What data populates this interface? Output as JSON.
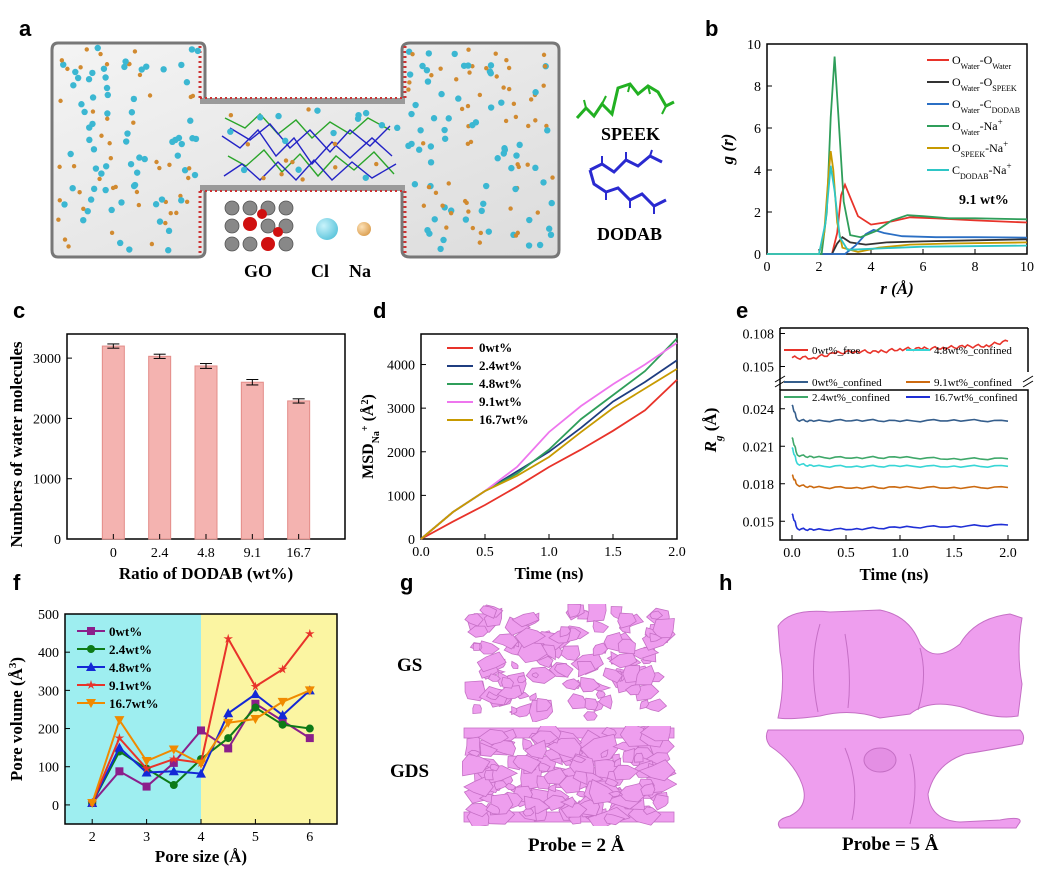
{
  "panels": {
    "a": {
      "letter": "a",
      "labels": {
        "speek": "SPEEK",
        "dodab": "DODAB",
        "go": "GO",
        "cl": "Cl",
        "na": "Na"
      }
    },
    "b": {
      "letter": "b",
      "annotation": "9.1 wt%",
      "xlabel": "r (Å)",
      "ylabel": "g (r)",
      "xticks": [
        "0",
        "2",
        "4",
        "6",
        "8",
        "10"
      ],
      "yticks": [
        "0",
        "2",
        "4",
        "6",
        "8",
        "10"
      ],
      "legend": [
        {
          "name": "OWater-OWater",
          "main": "O",
          "sub1": "Water",
          "mid": "-O",
          "sub2": "Water",
          "color": "#e8332a"
        },
        {
          "name": "OWater-OSPEEK",
          "main": "O",
          "sub1": "Water",
          "mid": "-O",
          "sub2": "SPEEK",
          "color": "#333333"
        },
        {
          "name": "OWater-CDODAB",
          "main": "O",
          "sub1": "Water",
          "mid": "-C",
          "sub2": "DODAB",
          "color": "#2b6fc4"
        },
        {
          "name": "OWater-Na+",
          "main": "O",
          "sub1": "Water",
          "mid": "-Na",
          "sup": "+",
          "color": "#2f9e5a"
        },
        {
          "name": "OSPEEK-Na+",
          "main": "O",
          "sub1": "SPEEK",
          "mid": "-Na",
          "sup": "+",
          "color": "#c79a00"
        },
        {
          "name": "CDODAB-Na+",
          "main": "C",
          "sub1": "DODAB",
          "mid": "-Na",
          "sup": "+",
          "color": "#2ec6c6"
        }
      ]
    },
    "c": {
      "letter": "c",
      "xlabel": "Ratio of DODAB (wt%)",
      "ylabel": "Numbers of water molecules",
      "yticks": [
        "0",
        "1000",
        "2000",
        "3000"
      ]
    },
    "d": {
      "letter": "d",
      "xlabel": "Time (ns)",
      "ylabel": "MSDNa+ (Å2)",
      "ylabel_main": "MSD",
      "ylabel_sub": "Na",
      "ylabel_sup": "+",
      "ylabel_unit": " (Å",
      "ylabel_unit_sup": "2",
      "ylabel_close": ")",
      "xticks": [
        "0.0",
        "0.5",
        "1.0",
        "1.5",
        "2.0"
      ],
      "yticks": [
        "0",
        "1000",
        "2000",
        "3000",
        "4000"
      ]
    },
    "e": {
      "letter": "e",
      "xlabel": "Time (ns)",
      "ylabel": "Rg (Å)",
      "xticks": [
        "0.0",
        "0.5",
        "1.0",
        "1.5",
        "2.0"
      ],
      "yticks_top": [
        "0.105",
        "0.108"
      ],
      "yticks_bottom": [
        "0.015",
        "0.018",
        "0.021",
        "0.024"
      ],
      "legend": [
        {
          "name": "0wt%_free",
          "color": "#e8332a"
        },
        {
          "name": "4.8wt%_confined",
          "color": "#37d6d6"
        },
        {
          "name": "0wt%_confined",
          "color": "#355e8c"
        },
        {
          "name": "9.1wt%_confined",
          "color": "#cc6a10"
        },
        {
          "name": "2.4wt%_confined",
          "color": "#3fa86a"
        },
        {
          "name": "16.7wt%_confined",
          "color": "#1f2fd6"
        }
      ]
    },
    "f": {
      "letter": "f",
      "xlabel": "Pore size (Å)",
      "ylabel": "Pore volume (Å3)",
      "xticks": [
        "2",
        "3",
        "4",
        "5",
        "6"
      ],
      "yticks": [
        "0",
        "100",
        "200",
        "300",
        "400",
        "500"
      ],
      "background_colors": {
        "left": "#9eeef0",
        "right": "#fbf5a2"
      }
    },
    "g": {
      "letter": "g",
      "row1": "GS",
      "row2": "GDS",
      "caption": "Probe = 2 Å"
    },
    "h": {
      "letter": "h",
      "caption": "Probe = 5 Å"
    }
  },
  "chart_data": [
    {
      "panel": "b",
      "type": "line",
      "xlim": [
        0,
        10
      ],
      "ylim": [
        0,
        10
      ],
      "series": [
        {
          "name": "OWater-OWater",
          "color": "#e8332a",
          "points": [
            [
              0,
              0
            ],
            [
              2.5,
              0
            ],
            [
              2.7,
              1.0
            ],
            [
              2.85,
              2.8
            ],
            [
              3.0,
              3.3
            ],
            [
              3.2,
              2.7
            ],
            [
              3.5,
              1.8
            ],
            [
              4.0,
              1.4
            ],
            [
              4.8,
              1.55
            ],
            [
              5.5,
              1.75
            ],
            [
              6.5,
              1.7
            ],
            [
              8,
              1.6
            ],
            [
              10,
              1.5
            ]
          ]
        },
        {
          "name": "OWater-OSPEEK",
          "color": "#333333",
          "points": [
            [
              0,
              0
            ],
            [
              2.5,
              0
            ],
            [
              2.7,
              0.5
            ],
            [
              2.9,
              0.8
            ],
            [
              3.2,
              0.55
            ],
            [
              3.8,
              0.45
            ],
            [
              4.6,
              0.55
            ],
            [
              6,
              0.6
            ],
            [
              8,
              0.65
            ],
            [
              10,
              0.7
            ]
          ]
        },
        {
          "name": "OWater-CDODAB",
          "color": "#2b6fc4",
          "points": [
            [
              0,
              0
            ],
            [
              3.0,
              0
            ],
            [
              3.4,
              0.4
            ],
            [
              3.8,
              0.95
            ],
            [
              4.1,
              1.15
            ],
            [
              4.5,
              1.0
            ],
            [
              5.2,
              0.85
            ],
            [
              6.5,
              0.8
            ],
            [
              8,
              0.8
            ],
            [
              10,
              0.78
            ]
          ]
        },
        {
          "name": "OWater-Na+",
          "color": "#2f9e5a",
          "points": [
            [
              0,
              0
            ],
            [
              2.1,
              0
            ],
            [
              2.3,
              2.0
            ],
            [
              2.45,
              6.5
            ],
            [
              2.6,
              9.4
            ],
            [
              2.75,
              6.5
            ],
            [
              2.95,
              2.5
            ],
            [
              3.2,
              0.9
            ],
            [
              3.6,
              0.8
            ],
            [
              4.2,
              1.1
            ],
            [
              4.8,
              1.6
            ],
            [
              5.4,
              1.85
            ],
            [
              6,
              1.8
            ],
            [
              7,
              1.7
            ],
            [
              8,
              1.7
            ],
            [
              10,
              1.65
            ]
          ]
        },
        {
          "name": "OSPEEK-Na+",
          "color": "#c79a00",
          "points": [
            [
              0,
              0
            ],
            [
              2.0,
              0
            ],
            [
              2.2,
              1.0
            ],
            [
              2.35,
              3.5
            ],
            [
              2.45,
              4.9
            ],
            [
              2.55,
              4.0
            ],
            [
              2.7,
              1.5
            ],
            [
              2.9,
              0.3
            ],
            [
              3.5,
              0.1
            ],
            [
              4.3,
              0.3
            ],
            [
              5.5,
              0.45
            ],
            [
              7,
              0.5
            ],
            [
              10,
              0.55
            ]
          ]
        },
        {
          "name": "CDODAB-Na+",
          "color": "#2ec6c6",
          "points": [
            [
              0,
              0
            ],
            [
              2.0,
              0
            ],
            [
              2.25,
              1.5
            ],
            [
              2.45,
              4.2
            ],
            [
              2.6,
              3.0
            ],
            [
              2.8,
              0.8
            ],
            [
              3.1,
              0.2
            ],
            [
              4,
              0.25
            ],
            [
              6,
              0.35
            ],
            [
              10,
              0.4
            ]
          ]
        }
      ]
    },
    {
      "panel": "c",
      "type": "bar",
      "categories": [
        "0",
        "2.4",
        "4.8",
        "9.1",
        "16.7"
      ],
      "values": [
        3200,
        3030,
        2870,
        2600,
        2290
      ],
      "errors": [
        35,
        35,
        40,
        45,
        35
      ],
      "ylim": [
        0,
        3400
      ],
      "bar_color": "#f4b3b0"
    },
    {
      "panel": "d",
      "type": "line",
      "xlim": [
        0,
        2
      ],
      "ylim": [
        0,
        4700
      ],
      "series": [
        {
          "name": "0wt%",
          "color": "#e8332a",
          "x": [
            0,
            0.25,
            0.5,
            0.75,
            1.0,
            1.25,
            1.5,
            1.75,
            2.0
          ],
          "y": [
            0,
            400,
            780,
            1200,
            1650,
            2050,
            2480,
            2950,
            3650
          ]
        },
        {
          "name": "2.4wt%",
          "color": "#1f3d80",
          "x": [
            0,
            0.25,
            0.5,
            0.75,
            1.0,
            1.25,
            1.5,
            1.75,
            2.0
          ],
          "y": [
            0,
            620,
            1100,
            1550,
            2000,
            2550,
            3150,
            3600,
            4100
          ]
        },
        {
          "name": "4.8wt%",
          "color": "#2f9e5a",
          "x": [
            0,
            0.25,
            0.5,
            0.75,
            1.0,
            1.25,
            1.5,
            1.75,
            2.0
          ],
          "y": [
            0,
            620,
            1100,
            1500,
            2050,
            2750,
            3300,
            3850,
            4600
          ]
        },
        {
          "name": "9.1wt%",
          "color": "#ee76ee",
          "x": [
            0,
            0.25,
            0.5,
            0.75,
            1.0,
            1.25,
            1.5,
            1.75,
            2.0
          ],
          "y": [
            0,
            620,
            1100,
            1650,
            2450,
            3050,
            3550,
            4000,
            4500
          ]
        },
        {
          "name": "16.7wt%",
          "color": "#c79a00",
          "x": [
            0,
            0.25,
            0.5,
            0.75,
            1.0,
            1.25,
            1.5,
            1.75,
            2.0
          ],
          "y": [
            0,
            620,
            1100,
            1450,
            1880,
            2450,
            3000,
            3450,
            3900
          ]
        }
      ]
    },
    {
      "panel": "e",
      "type": "line",
      "xlim": [
        0,
        2
      ],
      "series": [
        {
          "name": "0wt%_free",
          "color": "#e8332a",
          "x": [
            0,
            0.2,
            0.4,
            0.6,
            0.8,
            1.0,
            1.2,
            1.4,
            1.6,
            1.8,
            2.0
          ],
          "y": [
            0.1058,
            0.1058,
            0.1062,
            0.1064,
            0.1063,
            0.1066,
            0.1066,
            0.1067,
            0.1068,
            0.1069,
            0.1073
          ]
        },
        {
          "name": "0wt%_confined",
          "color": "#355e8c",
          "x": [
            0,
            0.05,
            0.2,
            0.6,
            1.0,
            1.5,
            2.0
          ],
          "y": [
            0.0243,
            0.0231,
            0.023,
            0.0231,
            0.023,
            0.0231,
            0.023
          ]
        },
        {
          "name": "2.4wt%_confined",
          "color": "#3fa86a",
          "x": [
            0,
            0.05,
            0.2,
            0.6,
            1.0,
            1.5,
            2.0
          ],
          "y": [
            0.0217,
            0.0203,
            0.0201,
            0.0201,
            0.0201,
            0.02,
            0.02
          ]
        },
        {
          "name": "4.8wt%_confined",
          "color": "#37d6d6",
          "x": [
            0,
            0.05,
            0.2,
            0.6,
            1.0,
            1.5,
            2.0
          ],
          "y": [
            0.0209,
            0.0196,
            0.0194,
            0.0194,
            0.0194,
            0.0194,
            0.0194
          ]
        },
        {
          "name": "9.1wt%_confined",
          "color": "#cc6a10",
          "x": [
            0,
            0.05,
            0.2,
            0.6,
            1.0,
            1.5,
            2.0
          ],
          "y": [
            0.0187,
            0.0179,
            0.0177,
            0.0177,
            0.0177,
            0.0177,
            0.0177
          ]
        },
        {
          "name": "16.7wt%_confined",
          "color": "#1f2fd6",
          "x": [
            0,
            0.05,
            0.2,
            0.6,
            1.0,
            1.5,
            2.0
          ],
          "y": [
            0.0156,
            0.0144,
            0.0143,
            0.0144,
            0.0145,
            0.0146,
            0.0147
          ]
        }
      ]
    },
    {
      "panel": "f",
      "type": "line",
      "xlim": [
        1.5,
        6.5
      ],
      "ylim": [
        -50,
        500
      ],
      "x": [
        2.0,
        2.5,
        3.0,
        3.5,
        4.0,
        4.5,
        5.0,
        5.5,
        6.0
      ],
      "series": [
        {
          "name": "0wt%",
          "color": "#8b1f8b",
          "marker": "square",
          "values": [
            5,
            88,
            48,
            110,
            195,
            148,
            265,
            220,
            175
          ]
        },
        {
          "name": "2.4wt%",
          "color": "#0d7a17",
          "marker": "circle",
          "values": [
            5,
            140,
            95,
            52,
            120,
            175,
            255,
            210,
            200
          ]
        },
        {
          "name": "4.8wt%",
          "color": "#1428d6",
          "marker": "triangle",
          "values": [
            5,
            150,
            85,
            88,
            82,
            240,
            290,
            235,
            300
          ]
        },
        {
          "name": "9.1wt%",
          "color": "#e8332a",
          "marker": "star",
          "values": [
            5,
            175,
            95,
            120,
            110,
            435,
            310,
            355,
            448
          ]
        },
        {
          "name": "16.7wt%",
          "color": "#f08a00",
          "marker": "triangle-down",
          "values": [
            5,
            222,
            115,
            145,
            108,
            215,
            225,
            270,
            300
          ]
        }
      ]
    }
  ]
}
